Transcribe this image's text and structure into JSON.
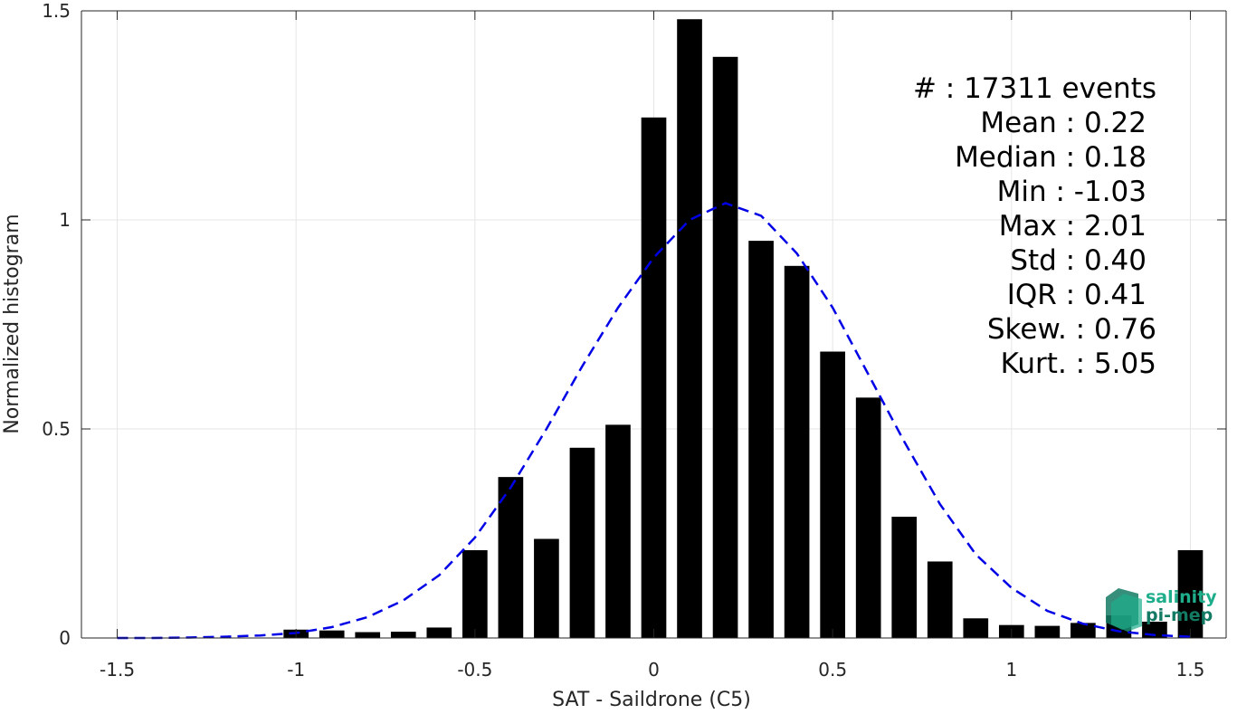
{
  "chart_data": {
    "type": "bar",
    "title": "",
    "xlabel": "SAT - Saildrone (C5)",
    "ylabel": "Normalized histogram",
    "xlim": [
      -1.6,
      1.6
    ],
    "ylim": [
      0,
      1.5
    ],
    "xticks": [
      -1.5,
      -1,
      -0.5,
      0,
      0.5,
      1,
      1.5
    ],
    "xtick_labels": [
      "-1.5",
      "-1",
      "-0.5",
      "0",
      "0.5",
      "1",
      "1.5"
    ],
    "yticks": [
      0,
      0.5,
      1,
      1.5
    ],
    "ytick_labels": [
      "0",
      "0.5",
      "1",
      "1.5"
    ],
    "grid": true,
    "bar_width": 0.07,
    "bar_color": "#000000",
    "x": [
      -1.0,
      -0.9,
      -0.8,
      -0.7,
      -0.6,
      -0.5,
      -0.4,
      -0.3,
      -0.2,
      -0.1,
      0.0,
      0.1,
      0.2,
      0.3,
      0.4,
      0.5,
      0.6,
      0.7,
      0.8,
      0.9,
      1.0,
      1.1,
      1.2,
      1.3,
      1.4,
      1.5
    ],
    "values": [
      0.02,
      0.018,
      0.014,
      0.015,
      0.025,
      0.21,
      0.385,
      0.237,
      0.455,
      0.51,
      1.245,
      1.48,
      1.39,
      0.95,
      0.89,
      0.685,
      0.575,
      0.29,
      0.183,
      0.047,
      0.031,
      0.029,
      0.036,
      0.054,
      0.039,
      0.21
    ],
    "fit_curve": {
      "style": "dashed",
      "color": "#0000e6",
      "x": [
        -1.5,
        -1.4,
        -1.3,
        -1.2,
        -1.1,
        -1.0,
        -0.9,
        -0.8,
        -0.7,
        -0.6,
        -0.5,
        -0.4,
        -0.3,
        -0.2,
        -0.1,
        0.0,
        0.1,
        0.2,
        0.3,
        0.4,
        0.5,
        0.6,
        0.7,
        0.8,
        0.9,
        1.0,
        1.1,
        1.2,
        1.3,
        1.4,
        1.5
      ],
      "y": [
        0.0,
        0.0,
        0.001,
        0.003,
        0.006,
        0.012,
        0.026,
        0.05,
        0.09,
        0.15,
        0.24,
        0.36,
        0.5,
        0.65,
        0.79,
        0.91,
        1.0,
        1.04,
        1.01,
        0.92,
        0.79,
        0.63,
        0.47,
        0.32,
        0.2,
        0.12,
        0.065,
        0.034,
        0.016,
        0.007,
        0.003
      ]
    }
  },
  "stats": [
    {
      "label": "#  : 17311 events",
      "align": "right"
    },
    {
      "label": "Mean : 0.22",
      "align": "right"
    },
    {
      "label": "Median : 0.18",
      "align": "right"
    },
    {
      "label": "Min : -1.03",
      "align": "right"
    },
    {
      "label": "Max : 2.01",
      "align": "right"
    },
    {
      "label": "Std : 0.40",
      "align": "right"
    },
    {
      "label": "IQR : 0.41",
      "align": "right"
    },
    {
      "label": "Skew. : 0.76",
      "align": "right"
    },
    {
      "label": "Kurt. : 5.05",
      "align": "right"
    }
  ],
  "logo": {
    "line1": "salinity",
    "line2": "pi-mep",
    "color1": "#1fae8c",
    "color2": "#137a64"
  }
}
